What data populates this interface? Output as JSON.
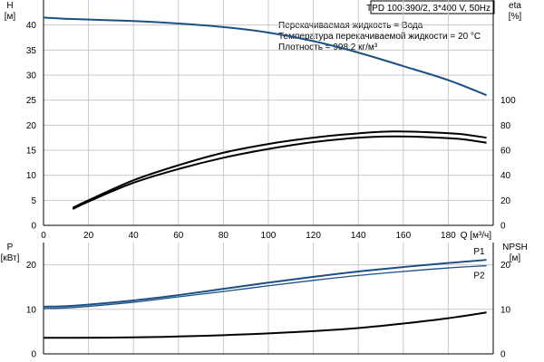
{
  "badge": "TPD 100-390/2, 3*400 V, 50Hz",
  "info_lines": [
    "Перекачиваемая жидкость = Вода",
    "Температура перекачиваемой жидкости = 20 °C",
    "Плотность = 998.2 кг/м³"
  ],
  "colors": {
    "head": "#1c4f86",
    "power": "#1c4f86",
    "eta": "#000000",
    "npsh": "#000000",
    "grid": "#c8c8c8",
    "axis": "#000000"
  },
  "chart_data": [
    {
      "type": "line",
      "title": "",
      "xlabel": "Q [м³/ч]",
      "ylabel_left": "H [м]",
      "ylabel_right": "eta [%]",
      "x_ticks": [
        0,
        20,
        40,
        60,
        80,
        100,
        120,
        140,
        160,
        180
      ],
      "y_left_ticks": [
        0,
        5,
        10,
        15,
        20,
        25,
        30,
        35,
        40
      ],
      "y_right_ticks": [
        0,
        20,
        40,
        60,
        80,
        100
      ],
      "xlim": [
        0,
        200
      ],
      "ylim_left": [
        0,
        45
      ],
      "ylim_right": [
        0,
        180
      ],
      "grid": true,
      "series": [
        {
          "name": "",
          "axis": "left",
          "x": [
            0,
            13,
            40,
            60,
            80,
            100,
            120,
            140,
            160,
            180,
            197
          ],
          "y": [
            41.5,
            41.2,
            40.8,
            40.3,
            39.6,
            38.5,
            36.8,
            34.5,
            31.8,
            29.0,
            26.0
          ]
        },
        {
          "name": "",
          "axis": "right",
          "x": [
            13,
            20,
            40,
            60,
            80,
            100,
            120,
            140,
            155,
            170,
            185,
            197
          ],
          "y": [
            14,
            20,
            36,
            48,
            58,
            65,
            70,
            73.5,
            75,
            74.5,
            73,
            70
          ]
        },
        {
          "name": "",
          "axis": "right",
          "x": [
            13,
            20,
            40,
            60,
            80,
            100,
            120,
            140,
            155,
            170,
            185,
            197
          ],
          "y": [
            13,
            19,
            34,
            45,
            54,
            61,
            66.5,
            70,
            71,
            70.5,
            69,
            66
          ]
        }
      ]
    },
    {
      "type": "line",
      "title": "",
      "xlabel": "",
      "ylabel_left": "P [кВт]",
      "ylabel_right": "NPSH [м]",
      "y_left_ticks": [
        0,
        10,
        20
      ],
      "y_right_ticks": [
        0,
        10,
        20
      ],
      "xlim": [
        0,
        200
      ],
      "ylim_left": [
        0,
        25
      ],
      "ylim_right": [
        0,
        25
      ],
      "grid": true,
      "series": [
        {
          "name": "P1",
          "axis": "left",
          "x": [
            0,
            13,
            40,
            60,
            80,
            100,
            120,
            140,
            160,
            180,
            197
          ],
          "y": [
            10.6,
            10.8,
            12.0,
            13.2,
            14.6,
            16.0,
            17.3,
            18.5,
            19.5,
            20.4,
            21.1
          ]
        },
        {
          "name": "P2",
          "axis": "left",
          "x": [
            0,
            13,
            40,
            60,
            80,
            100,
            120,
            140,
            160,
            180,
            197
          ],
          "y": [
            10.2,
            10.4,
            11.6,
            12.8,
            14.0,
            15.3,
            16.5,
            17.6,
            18.5,
            19.3,
            19.8
          ]
        },
        {
          "name": "",
          "axis": "right",
          "x": [
            0,
            13,
            40,
            60,
            80,
            100,
            120,
            140,
            160,
            180,
            197
          ],
          "y": [
            3.6,
            3.6,
            3.7,
            3.9,
            4.2,
            4.6,
            5.1,
            5.8,
            6.8,
            8.0,
            9.3
          ]
        }
      ]
    }
  ]
}
